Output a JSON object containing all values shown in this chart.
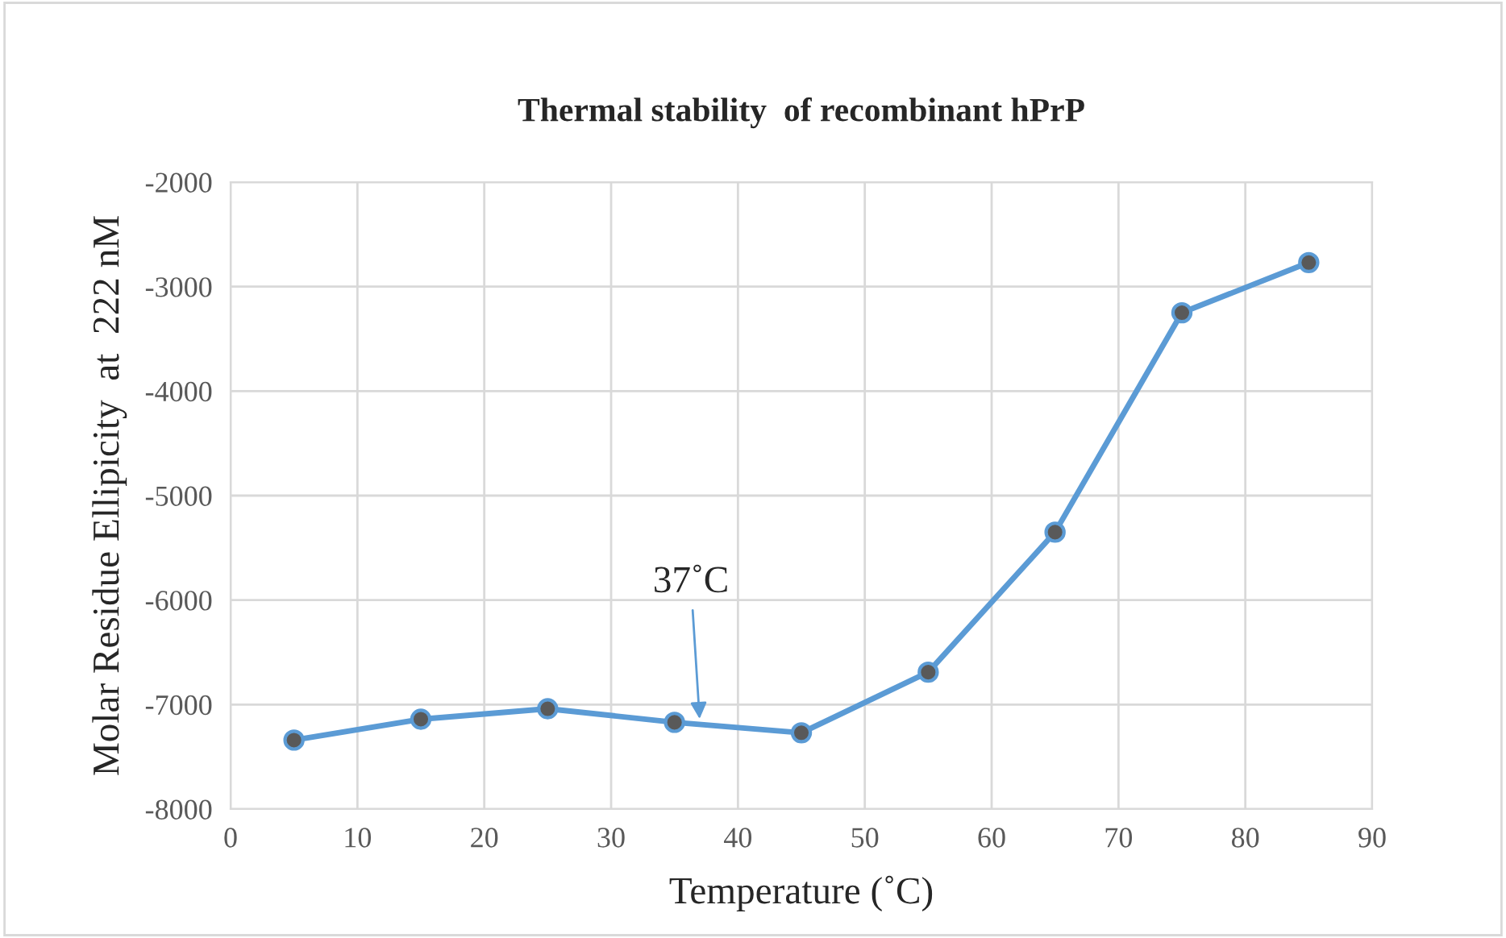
{
  "chart_data": {
    "type": "line",
    "title": "Thermal stability  of recombinant hPrP",
    "xlabel": "Temperature (˚C)",
    "ylabel": "Molar Residue Ellipicity  at  222 nM",
    "x": [
      5,
      15,
      25,
      35,
      45,
      55,
      65,
      75,
      85
    ],
    "series": [
      {
        "color": "#5b9bd5",
        "values": [
          -7340,
          -7140,
          -7040,
          -7170,
          -7270,
          -6690,
          -5350,
          -3250,
          -2770
        ]
      }
    ],
    "xlim": [
      0,
      90
    ],
    "xticks": [
      0,
      10,
      20,
      30,
      40,
      50,
      60,
      70,
      80,
      90
    ],
    "ylim": [
      -8000,
      -2000
    ],
    "yticks": [
      -8000,
      -7000,
      -6000,
      -5000,
      -4000,
      -3000,
      -2000
    ],
    "annotations": [
      {
        "text": "37˚C",
        "x": 37,
        "y": -7180
      }
    ],
    "grid": true,
    "marker": "circle",
    "line_style": "solid",
    "legend": false
  }
}
